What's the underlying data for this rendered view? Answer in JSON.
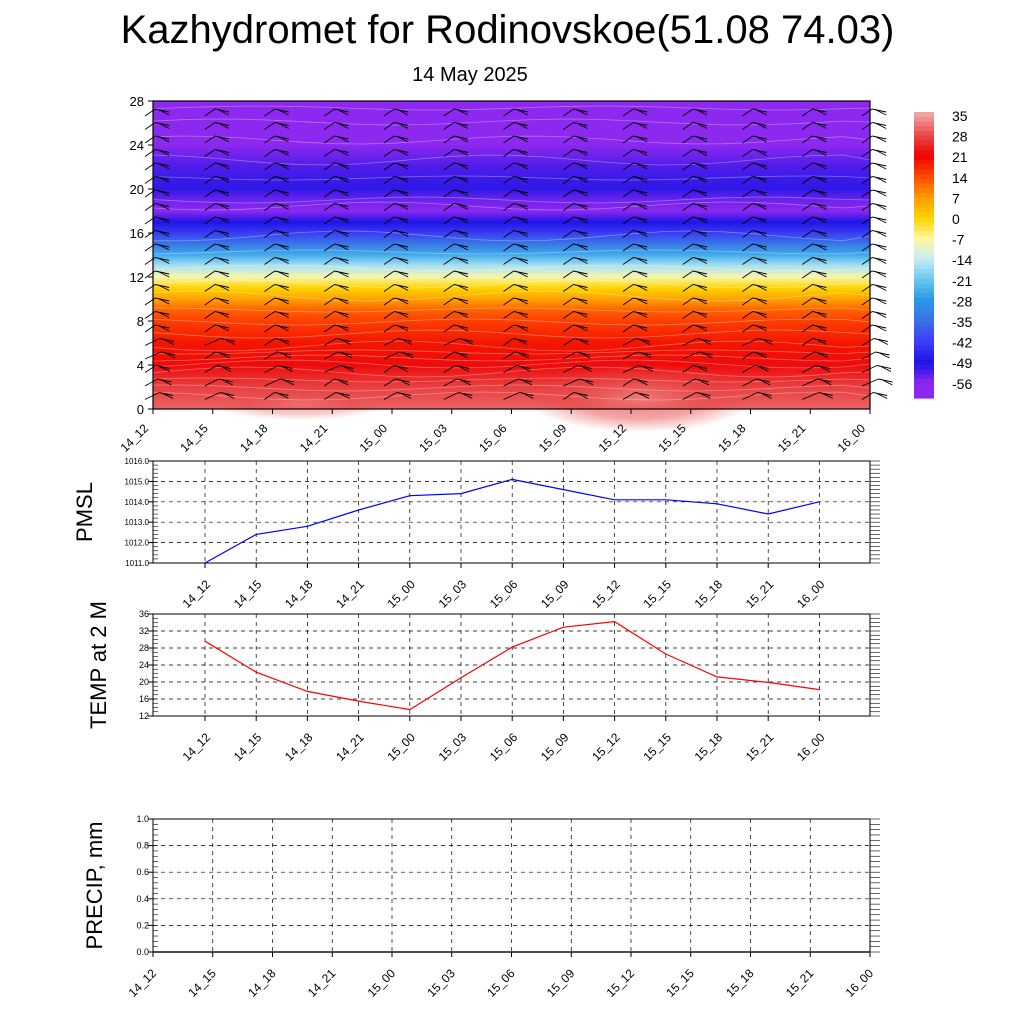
{
  "title": "Kazhydromet for Rodinovskoe(51.08 74.03)",
  "date": "14 May 2025",
  "time_labels": [
    "14_12",
    "14_15",
    "14_18",
    "14_21",
    "15_00",
    "15_03",
    "15_06",
    "15_09",
    "15_12",
    "15_15",
    "15_18",
    "15_21",
    "16_00"
  ],
  "colorbar": {
    "labels": [
      "35",
      "28",
      "21",
      "14",
      "7",
      "0",
      "-7",
      "-14",
      "-21",
      "-28",
      "-35",
      "-42",
      "-49",
      "-56"
    ],
    "colors": [
      "#f2a3a3",
      "#e84a4a",
      "#f00000",
      "#ff4a00",
      "#ff9a00",
      "#ffd400",
      "#fff8a0",
      "#c8ecf4",
      "#64c8f0",
      "#2896e6",
      "#3c6ee6",
      "#3c3cf5",
      "#1e14e6",
      "#8c28f0"
    ]
  },
  "chart_data": [
    {
      "type": "heatmap",
      "name": "cross-section",
      "x": [
        "14_12",
        "14_15",
        "14_18",
        "14_21",
        "15_00",
        "15_03",
        "15_06",
        "15_09",
        "15_12",
        "15_15",
        "15_18",
        "15_21",
        "16_00"
      ],
      "ylim": [
        0,
        28
      ],
      "yticks": [
        "0",
        "4",
        "8",
        "12",
        "16",
        "20",
        "24",
        "28"
      ],
      "profile": [
        {
          "y": 0,
          "v": 30
        },
        {
          "y": 2,
          "v": 27
        },
        {
          "y": 4,
          "v": 22
        },
        {
          "y": 6,
          "v": 19
        },
        {
          "y": 8,
          "v": 15
        },
        {
          "y": 9,
          "v": 12
        },
        {
          "y": 10,
          "v": 6
        },
        {
          "y": 11,
          "v": 0
        },
        {
          "y": 12,
          "v": -8
        },
        {
          "y": 13,
          "v": -16
        },
        {
          "y": 14,
          "v": -25
        },
        {
          "y": 15,
          "v": -33
        },
        {
          "y": 16,
          "v": -42
        },
        {
          "y": 17,
          "v": -49
        },
        {
          "y": 18,
          "v": -56
        },
        {
          "y": 19,
          "v": -54
        },
        {
          "y": 20,
          "v": -50
        },
        {
          "y": 22,
          "v": -52
        },
        {
          "y": 24,
          "v": -56
        },
        {
          "y": 26,
          "v": -58
        },
        {
          "y": 28,
          "v": -60
        }
      ]
    },
    {
      "type": "line",
      "name": "pmsl",
      "ylabel": "PMSL",
      "x": [
        "14_12",
        "14_15",
        "14_18",
        "14_21",
        "15_00",
        "15_03",
        "15_06",
        "15_09",
        "15_12",
        "15_15",
        "15_18",
        "15_21",
        "16_00"
      ],
      "values": [
        1011.0,
        1012.4,
        1012.8,
        1013.6,
        1014.3,
        1014.4,
        1015.1,
        1014.6,
        1014.1,
        1014.1,
        1013.9,
        1013.4,
        1014.0
      ],
      "ylim": [
        1011.0,
        1016.0
      ],
      "yticks": [
        "1011.0",
        "1012.0",
        "1013.0",
        "1014.0",
        "1015.0",
        "1016.0"
      ],
      "color": "#0000ff"
    },
    {
      "type": "line",
      "name": "temp",
      "ylabel": "TEMP at 2 M",
      "x": [
        "14_12",
        "14_15",
        "14_18",
        "14_21",
        "15_00",
        "15_03",
        "15_06",
        "15_09",
        "15_12",
        "15_15",
        "15_18",
        "15_21",
        "16_00"
      ],
      "values": [
        29.6,
        22.3,
        17.8,
        15.5,
        13.5,
        21.0,
        28.2,
        32.9,
        34.2,
        26.6,
        21.2,
        19.9,
        18.2
      ],
      "ylim": [
        12,
        36
      ],
      "yticks": [
        "12",
        "16",
        "20",
        "24",
        "28",
        "32",
        "36"
      ],
      "color": "#ff0000"
    },
    {
      "type": "line",
      "name": "precip",
      "ylabel": "PRECIP, mm",
      "x": [
        "14_12",
        "14_15",
        "14_18",
        "14_21",
        "15_00",
        "15_03",
        "15_06",
        "15_09",
        "15_12",
        "15_15",
        "15_18",
        "15_21",
        "16_00"
      ],
      "values": [
        0,
        0,
        0,
        0,
        0,
        0,
        0,
        0,
        0,
        0,
        0,
        0,
        0
      ],
      "ylim": [
        0,
        1
      ],
      "yticks": [
        "0.0",
        "0.2",
        "0.4",
        "0.6",
        "0.8",
        "1.0"
      ],
      "color": "#006400"
    }
  ]
}
